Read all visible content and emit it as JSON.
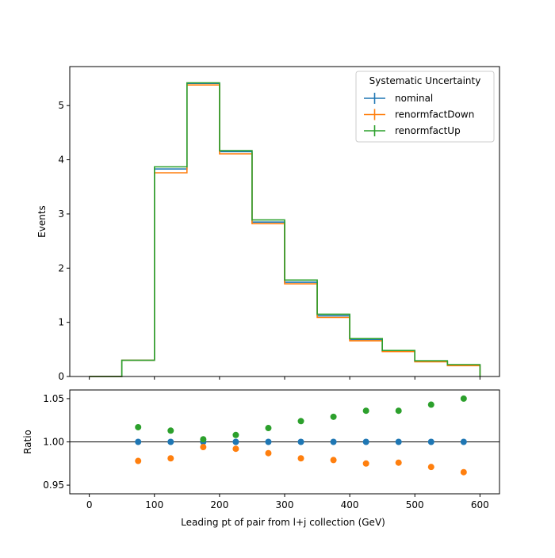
{
  "chart_data": [
    {
      "type": "step",
      "ylabel": "Events",
      "ylim": [
        0,
        5.72
      ],
      "xlim": [
        -30,
        630
      ],
      "yticks": [
        0,
        1,
        2,
        3,
        4,
        5
      ],
      "bin_edges": [
        0,
        50,
        100,
        150,
        200,
        250,
        300,
        350,
        400,
        450,
        500,
        550,
        600
      ],
      "legend": {
        "title": "Systematic Uncertainty",
        "placement": "top-right"
      },
      "series": [
        {
          "name": "nominal",
          "color": "#1f77b4",
          "values": [
            0.0,
            0.3,
            3.83,
            5.41,
            4.15,
            2.85,
            1.74,
            1.12,
            0.68,
            0.47,
            0.28,
            0.21
          ]
        },
        {
          "name": "renormfactDown",
          "color": "#ff7f0e",
          "values": [
            0.0,
            0.3,
            3.76,
            5.38,
            4.11,
            2.82,
            1.71,
            1.09,
            0.66,
            0.46,
            0.27,
            0.2
          ]
        },
        {
          "name": "renormfactUp",
          "color": "#2ca02c",
          "values": [
            0.0,
            0.3,
            3.87,
            5.42,
            4.17,
            2.89,
            1.78,
            1.15,
            0.7,
            0.48,
            0.29,
            0.22
          ]
        }
      ]
    },
    {
      "type": "scatter",
      "xlabel": "Leading pt of pair from l+j collection (GeV)",
      "ylabel": "Ratio",
      "xlim": [
        -30,
        630
      ],
      "ylim": [
        0.94,
        1.06
      ],
      "xticks": [
        0,
        100,
        200,
        300,
        400,
        500,
        600
      ],
      "yticks": [
        0.95,
        1.0,
        1.05
      ],
      "reference_line": 1.0,
      "x": [
        75,
        125,
        175,
        225,
        275,
        325,
        375,
        425,
        475,
        525,
        575
      ],
      "series": [
        {
          "name": "nominal",
          "color": "#1f77b4",
          "values": [
            1.0,
            1.0,
            1.0,
            1.0,
            1.0,
            1.0,
            1.0,
            1.0,
            1.0,
            1.0,
            1.0
          ]
        },
        {
          "name": "renormfactDown",
          "color": "#ff7f0e",
          "values": [
            0.978,
            0.981,
            0.994,
            0.992,
            0.987,
            0.981,
            0.979,
            0.975,
            0.976,
            0.971,
            0.965
          ]
        },
        {
          "name": "renormfactUp",
          "color": "#2ca02c",
          "values": [
            1.017,
            1.013,
            1.003,
            1.008,
            1.016,
            1.024,
            1.029,
            1.036,
            1.036,
            1.043,
            1.05
          ]
        }
      ]
    }
  ]
}
